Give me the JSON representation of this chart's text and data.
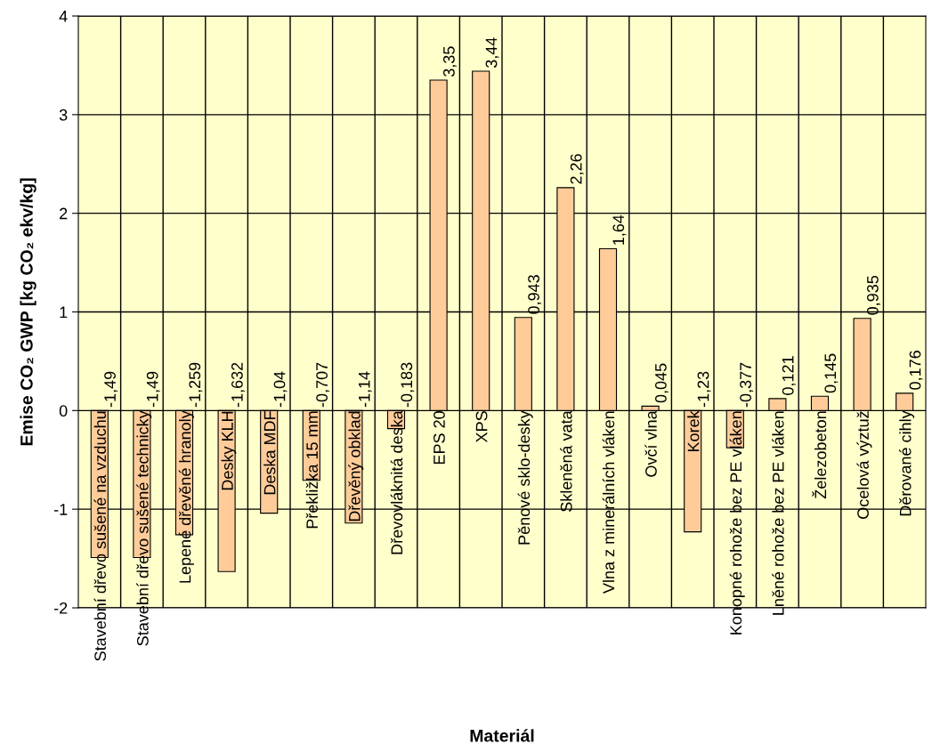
{
  "chart_data": {
    "type": "bar",
    "xlabel": "Materiál",
    "ylabel": "Emise CO₂ GWP [kg CO₂ ekv/kg]",
    "categories": [
      "Stavební dřevo sušené na vzduchu",
      "Stavební dřevo sušené technicky",
      "Lepené dřevěné hranoly",
      "Desky KLH",
      "Deska MDF",
      "Překližka 15 mm",
      "Dřevěný obklad",
      "Dřevovláknitá deska",
      "EPS 20",
      "XPS",
      "Pěnové sklo-desky",
      "Skleněná vata",
      "Vlna z minerálních vláken",
      "Ovčí vlna",
      "Korek",
      "Konopné rohože bez PE vláken",
      "Lněné rohože bez PE vláken",
      "Železobeton",
      "Ocelová výztuž",
      "Děrované cihly"
    ],
    "values": [
      -1.49,
      -1.49,
      -1.259,
      -1.632,
      -1.04,
      -0.707,
      -1.14,
      -0.183,
      3.35,
      3.44,
      0.943,
      2.26,
      1.64,
      0.045,
      -1.23,
      -0.377,
      0.121,
      0.145,
      0.935,
      0.176
    ],
    "value_labels": [
      "-1,49",
      "-1,49",
      "-1,259",
      "-1,632",
      "-1,04",
      "-0,707",
      "-1,14",
      "-0,183",
      "3,35",
      "3,44",
      "0,943",
      "2,26",
      "1,64",
      "0,045",
      "-1,23",
      "-0,377",
      "0,121",
      "0,145",
      "0,935",
      "0,176"
    ],
    "color": "#ffcc99",
    "ylim": [
      -2,
      4
    ],
    "yticks": [
      -2,
      -1,
      0,
      1,
      2,
      3,
      4
    ],
    "grid": true
  }
}
